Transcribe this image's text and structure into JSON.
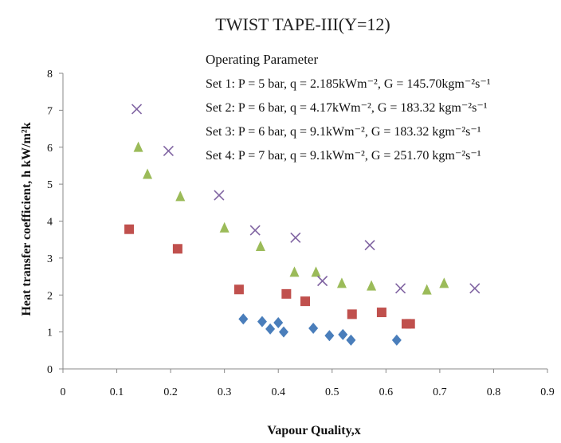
{
  "chart_data": {
    "type": "scatter",
    "title": "TWIST TAPE-III(Y=12)",
    "xlabel": "Vapour Quality,x",
    "ylabel": "Heat transfer coefficient, h kW/m²k",
    "xlim": [
      0,
      0.9
    ],
    "ylim": [
      0,
      8
    ],
    "x_ticks": [
      "0",
      "0.1",
      "0.2",
      "0.3",
      "0.4",
      "0.5",
      "0.6",
      "0.7",
      "0.8",
      "0.9"
    ],
    "y_ticks": [
      "0",
      "1",
      "2",
      "3",
      "4",
      "5",
      "6",
      "7",
      "8"
    ],
    "grid": false,
    "legend": {
      "heading": "Operating Parameter",
      "placement": "top-right",
      "entries": [
        "Set 1: P = 5 bar, q = 2.185kWm⁻², G = 145.70kgm⁻²s⁻¹",
        "Set 2: P = 6 bar, q = 4.17kWm⁻²,   G = 183.32 kgm⁻²s⁻¹",
        "Set 3: P = 6 bar, q = 9.1kWm⁻²,    G = 183.32 kgm⁻²s⁻¹",
        "Set 4: P = 7 bar, q = 9.1kWm⁻²,    G = 251.70 kgm⁻²s⁻¹"
      ]
    },
    "series": [
      {
        "marker": "diamond",
        "color": "#4a7ebb",
        "points": [
          [
            0.335,
            1.35
          ],
          [
            0.37,
            1.28
          ],
          [
            0.385,
            1.08
          ],
          [
            0.4,
            1.25
          ],
          [
            0.41,
            1.0
          ],
          [
            0.465,
            1.1
          ],
          [
            0.495,
            0.9
          ],
          [
            0.52,
            0.93
          ],
          [
            0.535,
            0.78
          ],
          [
            0.62,
            0.78
          ]
        ]
      },
      {
        "marker": "square",
        "color": "#c0504d",
        "points": [
          [
            0.123,
            3.78
          ],
          [
            0.213,
            3.25
          ],
          [
            0.327,
            2.15
          ],
          [
            0.415,
            2.03
          ],
          [
            0.45,
            1.83
          ],
          [
            0.537,
            1.48
          ],
          [
            0.592,
            1.53
          ],
          [
            0.638,
            1.22
          ],
          [
            0.645,
            1.22
          ]
        ]
      },
      {
        "marker": "triangle",
        "color": "#9bbb59",
        "points": [
          [
            0.14,
            5.98
          ],
          [
            0.157,
            5.25
          ],
          [
            0.218,
            4.65
          ],
          [
            0.3,
            3.8
          ],
          [
            0.367,
            3.3
          ],
          [
            0.43,
            2.6
          ],
          [
            0.47,
            2.6
          ],
          [
            0.518,
            2.3
          ],
          [
            0.573,
            2.23
          ],
          [
            0.676,
            2.12
          ],
          [
            0.708,
            2.3
          ]
        ]
      },
      {
        "marker": "x",
        "color": "#8064a2",
        "points": [
          [
            0.137,
            7.03
          ],
          [
            0.196,
            5.9
          ],
          [
            0.29,
            4.7
          ],
          [
            0.357,
            3.75
          ],
          [
            0.432,
            3.55
          ],
          [
            0.482,
            2.38
          ],
          [
            0.57,
            3.35
          ],
          [
            0.627,
            2.18
          ],
          [
            0.765,
            2.18
          ]
        ]
      }
    ]
  }
}
